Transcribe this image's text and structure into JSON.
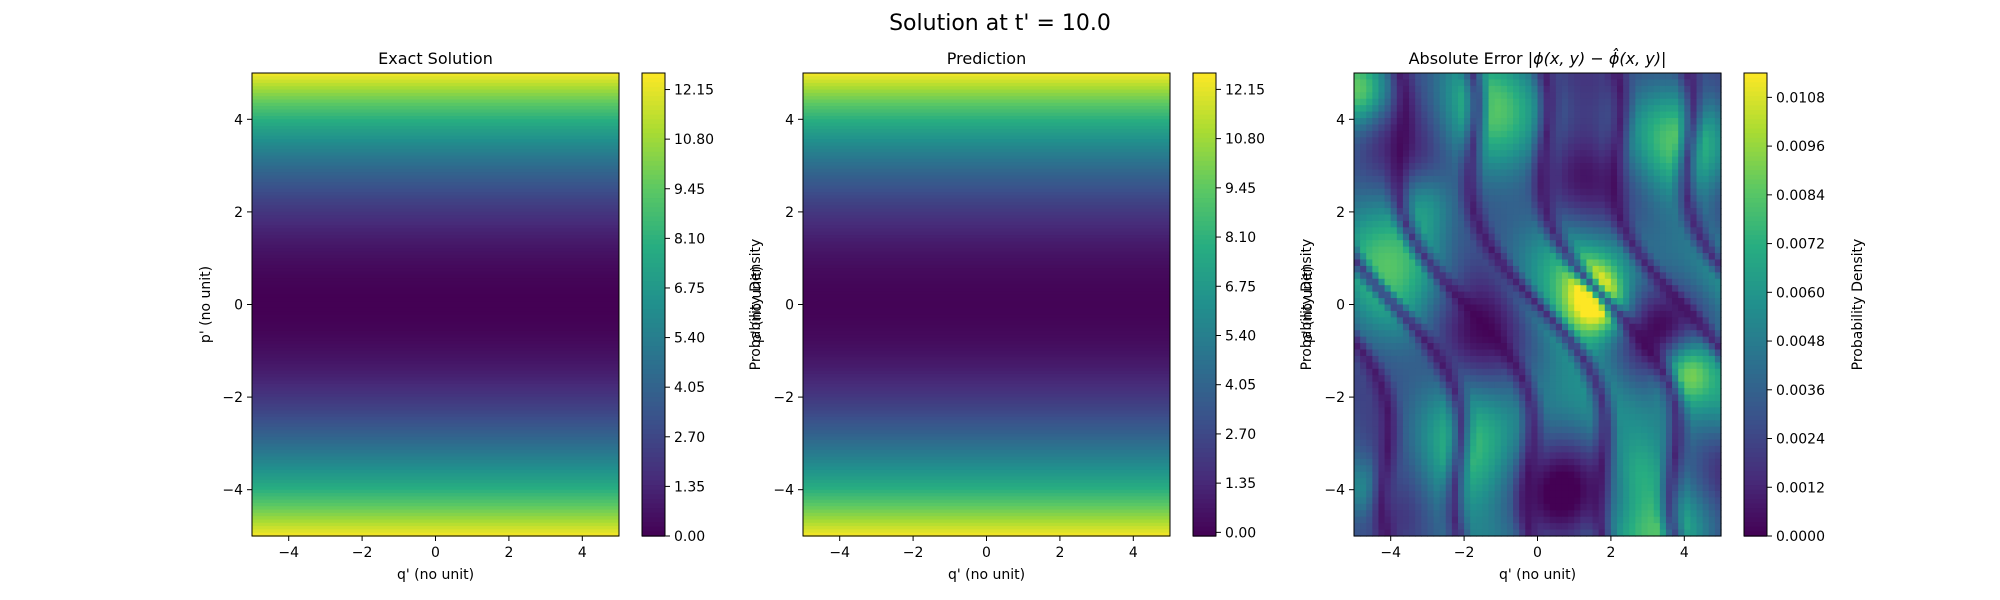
{
  "figure": {
    "suptitle": "Solution at t' = 10.0"
  },
  "chart_data": [
    {
      "type": "heatmap",
      "title": "Exact Solution",
      "xlabel": "q' (no unit)",
      "ylabel": "p' (no unit)",
      "xlim": [
        -5,
        5
      ],
      "ylim": [
        -5,
        5
      ],
      "xticks": [
        -4,
        -2,
        0,
        2,
        4
      ],
      "yticks": [
        -4,
        -2,
        0,
        2,
        4
      ],
      "colormap": "viridis",
      "colorbar": {
        "label": "Probability Density",
        "range": [
          0.0,
          12.6
        ],
        "ticks": [
          "0.00",
          "1.35",
          "2.70",
          "4.05",
          "5.40",
          "6.75",
          "8.10",
          "9.45",
          "10.80",
          "12.15"
        ]
      },
      "pattern": "density depends on p' only, approximately 0.5·p'^2 (min 0 at p'=0, max ~12.5 at p'=±5), uniform along q'",
      "profile_p": [
        -5,
        -4,
        -3,
        -2,
        -1,
        0,
        1,
        2,
        3,
        4,
        5
      ],
      "profile_density": [
        12.5,
        8.0,
        4.5,
        2.0,
        0.5,
        0.0,
        0.5,
        2.0,
        4.5,
        8.0,
        12.5
      ]
    },
    {
      "type": "heatmap",
      "title": "Prediction",
      "xlabel": "q' (no unit)",
      "ylabel": "p' (no unit)",
      "xlim": [
        -5,
        5
      ],
      "ylim": [
        -5,
        5
      ],
      "xticks": [
        -4,
        -2,
        0,
        2,
        4
      ],
      "yticks": [
        -4,
        -2,
        0,
        2,
        4
      ],
      "colormap": "viridis",
      "colorbar": {
        "label": "Probability Density",
        "range": [
          -0.1,
          12.6
        ],
        "ticks": [
          "0.00",
          "1.35",
          "2.70",
          "4.05",
          "5.40",
          "6.75",
          "8.10",
          "9.45",
          "10.80",
          "12.15"
        ]
      },
      "pattern": "nearly identical to the exact solution: density ≈ 0.5·p'^2, uniform along q'",
      "profile_p": [
        -5,
        -4,
        -3,
        -2,
        -1,
        0,
        1,
        2,
        3,
        4,
        5
      ],
      "profile_density": [
        12.5,
        8.0,
        4.5,
        2.0,
        0.5,
        0.0,
        0.5,
        2.0,
        4.5,
        8.0,
        12.5
      ]
    },
    {
      "type": "heatmap",
      "title_prefix": "Absolute Error ",
      "title_math": "|ϕ(x, y) − ϕ̂(x, y)|",
      "xlabel": "q' (no unit)",
      "ylabel": "p' (no unit)",
      "xlim": [
        -5,
        5
      ],
      "ylim": [
        -5,
        5
      ],
      "xticks": [
        -4,
        -2,
        0,
        2,
        4
      ],
      "yticks": [
        -4,
        -2,
        0,
        2,
        4
      ],
      "colormap": "viridis",
      "colorbar": {
        "label": "Probability Density",
        "range": [
          0.0,
          0.0114
        ],
        "ticks": [
          "0.0000",
          "0.0012",
          "0.0024",
          "0.0036",
          "0.0048",
          "0.0060",
          "0.0072",
          "0.0084",
          "0.0096",
          "0.0108"
        ]
      },
      "pattern": "irregular wavy error field with dark (near-zero) curved bands",
      "hotspots": [
        {
          "q": 1.6,
          "p": 0.1,
          "value": 0.0112
        },
        {
          "q": 4.1,
          "p": -1.4,
          "value": 0.0108
        },
        {
          "q": -4.7,
          "p": 4.6,
          "value": 0.0085
        },
        {
          "q": -4.7,
          "p": -4.0,
          "value": 0.0075
        },
        {
          "q": -3.0,
          "p": 2.2,
          "value": 0.0065
        },
        {
          "q": 2.7,
          "p": -3.6,
          "value": 0.006
        }
      ]
    }
  ]
}
